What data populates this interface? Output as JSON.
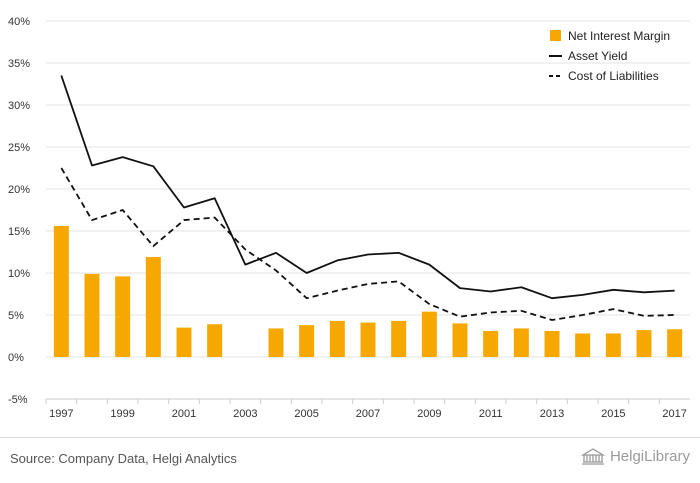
{
  "colors": {
    "bar": "#f7a800",
    "line": "#111111",
    "grid": "#e3e3e3",
    "axis": "#cccccc",
    "text": "#333333",
    "footer_text": "#555555",
    "brand": "#9a9a9a"
  },
  "chart_data": {
    "type": "bar",
    "grid": true,
    "legend_position": "top-right",
    "ylim": [
      -5,
      40
    ],
    "y_ticks": [
      -5,
      0,
      5,
      10,
      15,
      20,
      25,
      30,
      35,
      40
    ],
    "y_tick_labels": [
      "-5%",
      "0%",
      "5%",
      "10%",
      "15%",
      "20%",
      "25%",
      "30%",
      "35%",
      "40%"
    ],
    "x": [
      1997,
      1998,
      1999,
      2000,
      2001,
      2002,
      2003,
      2004,
      2005,
      2006,
      2007,
      2008,
      2009,
      2010,
      2011,
      2012,
      2013,
      2014,
      2015,
      2016,
      2017
    ],
    "x_tick_labels": [
      "1997",
      "1999",
      "2001",
      "2003",
      "2005",
      "2007",
      "2009",
      "2011",
      "2013",
      "2015",
      "2017"
    ],
    "series": [
      {
        "name": "Net Interest Margin",
        "type": "bar",
        "values": [
          15.6,
          9.9,
          9.6,
          11.9,
          3.5,
          3.9,
          null,
          3.4,
          3.8,
          4.3,
          4.1,
          4.3,
          5.4,
          4.0,
          3.1,
          3.4,
          3.1,
          2.8,
          2.8,
          3.2,
          3.3
        ]
      },
      {
        "name": "Asset Yield",
        "type": "line",
        "dash": "solid",
        "values": [
          33.5,
          22.8,
          23.8,
          22.7,
          17.8,
          18.9,
          11.0,
          12.4,
          10.0,
          11.5,
          12.2,
          12.4,
          11.0,
          8.2,
          7.8,
          8.3,
          7.0,
          7.4,
          8.0,
          7.7,
          7.9
        ]
      },
      {
        "name": "Cost of Liabilities",
        "type": "line",
        "dash": "dashed",
        "values": [
          22.5,
          16.3,
          17.5,
          13.2,
          16.3,
          16.6,
          12.8,
          10.3,
          7.0,
          7.9,
          8.7,
          9.0,
          6.3,
          4.8,
          5.3,
          5.5,
          4.4,
          5.0,
          5.7,
          4.9,
          5.0
        ]
      }
    ]
  },
  "footer": {
    "source": "Source: Company Data, Helgi Analytics",
    "brand": "HelgiLibrary",
    "brand_icon": "library-building-icon"
  }
}
